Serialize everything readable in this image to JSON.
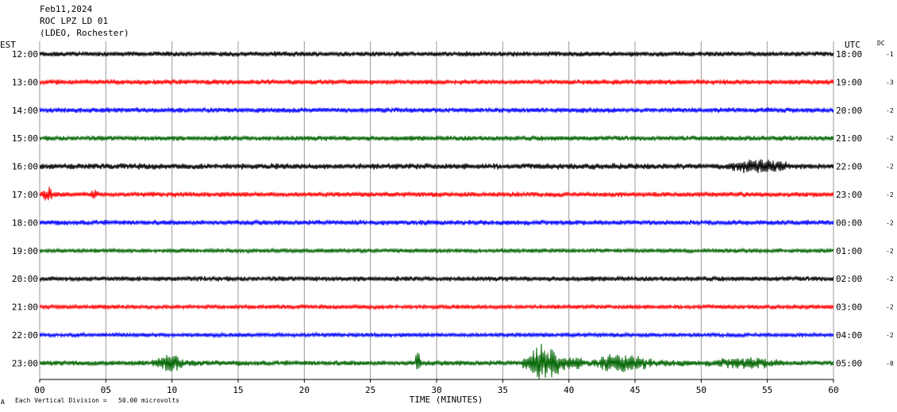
{
  "header": {
    "date": "Feb11,2024",
    "station": "ROC LPZ LD 01",
    "network": "(LDEO, Rochester)"
  },
  "labels": {
    "left_tz": "EST",
    "right_tz": "UTC",
    "dc": "DC",
    "footer_note": "Each Vertical Division =   50.00 microvolts",
    "footer_mark": "A"
  },
  "chart_data": {
    "type": "line",
    "title": "ROC LPZ LD 01",
    "xlabel": "TIME (MINUTES)",
    "ylabel": "",
    "xlim": [
      0,
      60
    ],
    "x_ticks": [
      "00",
      "05",
      "10",
      "15",
      "20",
      "25",
      "30",
      "35",
      "40",
      "45",
      "50",
      "55",
      "60"
    ],
    "grid": true,
    "series": [
      {
        "row": 0,
        "left_label": "12:00",
        "right_label": "18:00",
        "dc": "-1",
        "color": "#000000",
        "amplitude": 3.0
      },
      {
        "row": 1,
        "left_label": "13:00",
        "right_label": "19:00",
        "dc": "-3",
        "color": "#ff0000",
        "amplitude": 3.0
      },
      {
        "row": 2,
        "left_label": "14:00",
        "right_label": "20:00",
        "dc": "-2",
        "color": "#0000ff",
        "amplitude": 3.0
      },
      {
        "row": 3,
        "left_label": "15:00",
        "right_label": "21:00",
        "dc": "-2",
        "color": "#006400",
        "amplitude": 3.0
      },
      {
        "row": 4,
        "left_label": "16:00",
        "right_label": "22:00",
        "dc": "-2",
        "color": "#000000",
        "amplitude": 3.5
      },
      {
        "row": 5,
        "left_label": "17:00",
        "right_label": "23:00",
        "dc": "-2",
        "color": "#ff0000",
        "amplitude": 3.0
      },
      {
        "row": 6,
        "left_label": "18:00",
        "right_label": "00:00",
        "dc": "-2",
        "color": "#0000ff",
        "amplitude": 3.0
      },
      {
        "row": 7,
        "left_label": "19:00",
        "right_label": "01:00",
        "dc": "-2",
        "color": "#006400",
        "amplitude": 2.5
      },
      {
        "row": 8,
        "left_label": "20:00",
        "right_label": "02:00",
        "dc": "-2",
        "color": "#000000",
        "amplitude": 3.0
      },
      {
        "row": 9,
        "left_label": "21:00",
        "right_label": "03:00",
        "dc": "-2",
        "color": "#ff0000",
        "amplitude": 2.5
      },
      {
        "row": 10,
        "left_label": "22:00",
        "right_label": "04:00",
        "dc": "-2",
        "color": "#0000ff",
        "amplitude": 2.5
      },
      {
        "row": 11,
        "left_label": "23:00",
        "right_label": "05:00",
        "dc": "-0",
        "color": "#006400",
        "amplitude": 3.0
      }
    ],
    "events": [
      {
        "row": 4,
        "start_min": 51,
        "end_min": 60,
        "peak": 9
      },
      {
        "row": 5,
        "start_min": 0,
        "end_min": 1.5,
        "peak": 10
      },
      {
        "row": 5,
        "start_min": 3.5,
        "end_min": 5,
        "peak": 6
      },
      {
        "row": 11,
        "start_min": 8.5,
        "end_min": 12,
        "peak": 12
      },
      {
        "row": 11,
        "start_min": 28.4,
        "end_min": 28.8,
        "peak": 12
      },
      {
        "row": 11,
        "start_min": 36.5,
        "end_min": 41,
        "peak": 22
      },
      {
        "row": 11,
        "start_min": 41,
        "end_min": 49,
        "peak": 11
      },
      {
        "row": 11,
        "start_min": 49,
        "end_min": 60,
        "peak": 7
      }
    ]
  }
}
